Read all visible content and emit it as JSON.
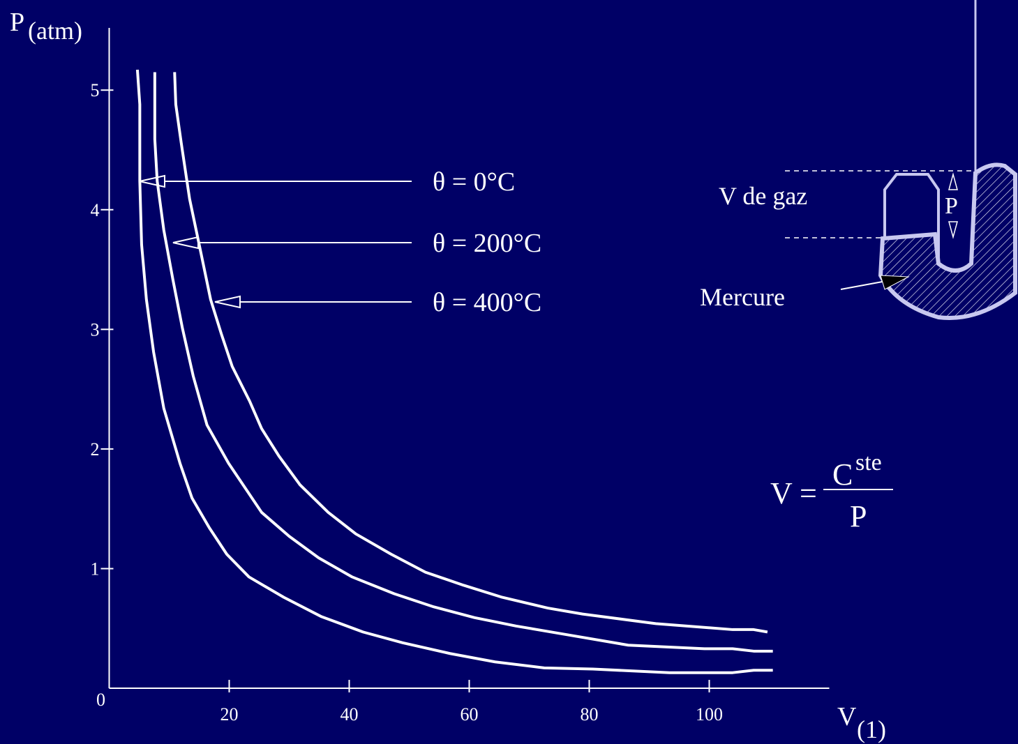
{
  "chart_data": {
    "type": "line",
    "y_label": {
      "main": "P",
      "sub": "(atm)"
    },
    "x_label": {
      "main": "V",
      "sub": "(1)"
    },
    "xlim": [
      0,
      120
    ],
    "ylim": [
      0,
      5.52
    ],
    "xticks": [
      0,
      20,
      40,
      60,
      80,
      100
    ],
    "yticks": [
      1,
      2,
      3,
      4,
      5
    ],
    "series": [
      {
        "name": "θ = 0°C",
        "color": "#ffffff",
        "x": [
          4.7,
          5.1,
          5.1,
          5.4,
          6.2,
          7.4,
          9.1,
          11.8,
          13.8,
          16.7,
          19.6,
          23.3,
          29.1,
          35.3,
          42.3,
          48.9,
          56.8,
          64.3,
          72.5,
          80.6,
          93.4,
          103.9,
          107.4,
          110.6
        ],
        "values": [
          5.17,
          4.88,
          4.24,
          3.71,
          3.25,
          2.81,
          2.34,
          1.88,
          1.59,
          1.34,
          1.12,
          0.93,
          0.76,
          0.6,
          0.47,
          0.38,
          0.29,
          0.22,
          0.17,
          0.16,
          0.13,
          0.13,
          0.15,
          0.15
        ]
      },
      {
        "name": "θ = 200°C",
        "color": "#ffffff",
        "x": [
          7.6,
          7.6,
          8.0,
          9.1,
          10.6,
          12.2,
          14.0,
          16.3,
          19.9,
          25.4,
          30.0,
          34.9,
          40.5,
          47.5,
          54.1,
          60.9,
          67.8,
          76.0,
          86.5,
          99.2,
          103.9,
          107.4,
          110.6
        ],
        "values": [
          5.15,
          4.59,
          4.24,
          3.83,
          3.42,
          3.01,
          2.61,
          2.2,
          1.88,
          1.47,
          1.27,
          1.09,
          0.93,
          0.79,
          0.68,
          0.59,
          0.52,
          0.45,
          0.36,
          0.33,
          0.33,
          0.31,
          0.31
        ]
      },
      {
        "name": "θ = 400°C",
        "color": "#ffffff",
        "x": [
          10.9,
          11.1,
          12.0,
          13.4,
          15.2,
          16.9,
          18.7,
          20.5,
          23.4,
          25.4,
          28.3,
          31.8,
          36.5,
          41.1,
          47.0,
          52.7,
          59.1,
          65.5,
          73.1,
          78.9,
          91.1,
          103.9,
          107.4,
          109.7
        ],
        "values": [
          5.15,
          4.88,
          4.56,
          4.09,
          3.66,
          3.25,
          2.96,
          2.69,
          2.4,
          2.17,
          1.94,
          1.7,
          1.47,
          1.29,
          1.12,
          0.97,
          0.86,
          0.76,
          0.67,
          0.62,
          0.54,
          0.49,
          0.49,
          0.47
        ]
      }
    ]
  },
  "diagram": {
    "gas_label": "V de gaz",
    "pressure_label": "P",
    "mercury_label": "Mercure"
  },
  "formula": {
    "lhs": "V =",
    "numerator": "C",
    "numerator_sup": "ste",
    "denominator": "P"
  }
}
